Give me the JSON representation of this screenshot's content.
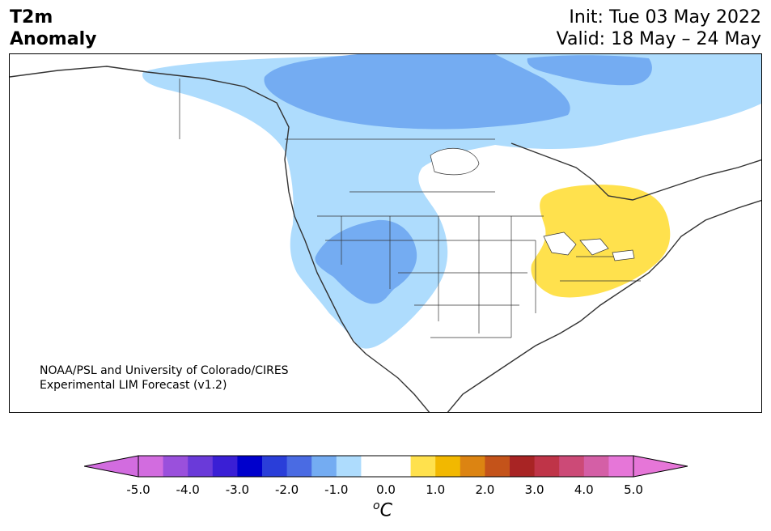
{
  "title": {
    "variable": "T2m",
    "kind": "Anomaly",
    "init": "Init: Tue 03 May 2022",
    "valid": "Valid: 18 May – 24 May"
  },
  "credit": {
    "line1": "NOAA/PSL and University of Colorado/CIRES",
    "line2": "Experimental LIM Forecast (v1.2)"
  },
  "colorbar": {
    "unit_base": "C",
    "unit_sup": "o",
    "ticks": [
      "-5.0",
      "-4.0",
      "-3.0",
      "-2.0",
      "-1.0",
      "0.0",
      "1.0",
      "2.0",
      "3.0",
      "4.0",
      "5.0"
    ],
    "colors": [
      "#d26cdf",
      "#9a50dc",
      "#6a3ad9",
      "#3a1fd5",
      "#0000cc",
      "#2a3ed9",
      "#4a6be3",
      "#74acf2",
      "#aedcfd",
      "#ffffff",
      "#ffffff",
      "#ffe14d",
      "#f2b800",
      "#dc8412",
      "#c4531a",
      "#a82424",
      "#bf3448",
      "#cc4a77",
      "#d45fa6",
      "#e676d8"
    ],
    "extend_low_color": "#d26cdf",
    "extend_high_color": "#e676d8"
  },
  "colors": {
    "light_blue": "#aedcfd",
    "mid_blue": "#74acf2",
    "yellow": "#ffe14d",
    "coast": "#333333"
  }
}
